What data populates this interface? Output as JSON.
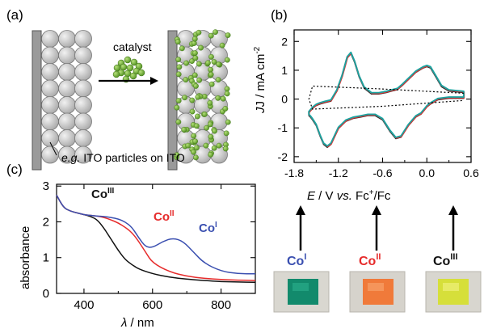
{
  "panel_a": {
    "label": "(a)",
    "catalyst_label": "catalyst",
    "caption_prefix": "e.g.",
    "caption_rest": " ITO particles on ITO"
  },
  "panel_b": {
    "label": "(b)",
    "ylabel_main": "J / mA cm",
    "ylabel_sup": "-2",
    "xlabel_E": "E",
    "xlabel_mid": " / V ",
    "xlabel_vs": "vs.",
    "xlabel_fc": " Fc",
    "xlabel_plus": "+",
    "xlabel_end": "/Fc",
    "xticks": [
      "-1.8",
      "-1.2",
      "-0.6",
      "0.0",
      "0.6"
    ],
    "yticks": [
      "2",
      "1",
      "0",
      "-1",
      "-2"
    ],
    "photo_labels": [
      {
        "base": "Co",
        "sup": "I"
      },
      {
        "base": "Co",
        "sup": "II"
      },
      {
        "base": "Co",
        "sup": "III"
      }
    ]
  },
  "panel_c": {
    "label": "(c)",
    "ylabel": "absorbance",
    "xlabel_lambda": "λ",
    "xlabel_unit": " / nm",
    "xticks": [
      "400",
      "600",
      "800"
    ],
    "yticks": [
      "3",
      "2",
      "1",
      "0"
    ],
    "annotations": [
      {
        "base": "Co",
        "sup": "III"
      },
      {
        "base": "Co",
        "sup": "II"
      },
      {
        "base": "Co",
        "sup": "I"
      }
    ]
  },
  "colors": {
    "co1": "#3a4fb0",
    "co2": "#e62b2b",
    "co3": "#111111",
    "cv_teal": "#1aa3a0",
    "particle_green": "#7dbb3a",
    "particle_gray": "#c8c8c8",
    "photo_co1": "#128a6c",
    "photo_co2": "#f07a3a",
    "photo_co3": "#d6df3a"
  },
  "chart_data": [
    {
      "type": "line",
      "panel": "(b)",
      "xlabel": "E / V vs. Fc+/Fc",
      "ylabel": "J / mA cm-2",
      "xlim": [
        -1.8,
        0.6
      ],
      "ylim": [
        -2.2,
        2.4
      ],
      "xticks": [
        -1.8,
        -1.2,
        -0.6,
        0.0,
        0.6
      ],
      "yticks": [
        -2,
        -1,
        0,
        1,
        2
      ],
      "series": [
        {
          "style": "solid",
          "x": [
            0.5,
            0.3,
            0.15,
            0.05,
            0.0,
            -0.03,
            -0.08,
            -0.15,
            -0.25,
            -0.35,
            -0.42,
            -0.5,
            -0.6,
            -0.7,
            -0.8,
            -0.9,
            -1.0,
            -1.1,
            -1.2,
            -1.3,
            -1.35,
            -1.4,
            -1.45,
            -1.5,
            -1.55,
            -1.58,
            -1.6,
            -1.6,
            -1.55,
            -1.5,
            -1.45,
            -1.38,
            -1.3,
            -1.22,
            -1.15,
            -1.08,
            -1.03,
            -0.98,
            -0.92,
            -0.85,
            -0.75,
            -0.65,
            -0.55,
            -0.48,
            -0.4,
            -0.33,
            -0.25,
            -0.15,
            -0.05,
            0.0,
            0.05,
            0.12,
            0.2,
            0.3,
            0.5
          ],
          "y": [
            0.05,
            0.05,
            0.0,
            -0.15,
            -0.25,
            -0.35,
            -0.5,
            -0.6,
            -0.9,
            -1.3,
            -1.35,
            -1.1,
            -0.7,
            -0.55,
            -0.55,
            -0.6,
            -0.65,
            -0.75,
            -1.0,
            -1.55,
            -1.65,
            -1.55,
            -1.25,
            -0.9,
            -0.7,
            -0.6,
            -0.55,
            -0.45,
            -0.3,
            -0.2,
            -0.15,
            -0.1,
            -0.05,
            0.3,
            0.8,
            1.45,
            1.6,
            1.3,
            0.8,
            0.4,
            0.2,
            0.2,
            0.25,
            0.3,
            0.35,
            0.5,
            0.7,
            0.95,
            1.1,
            1.15,
            1.1,
            0.8,
            0.45,
            0.3,
            0.25
          ]
        },
        {
          "style": "dotted",
          "x": [
            0.5,
            -0.6,
            -1.55,
            -1.6,
            -1.55,
            -0.6,
            0.5
          ],
          "y": [
            0.2,
            0.35,
            0.45,
            0.0,
            -0.35,
            -0.25,
            -0.05
          ]
        }
      ]
    },
    {
      "type": "line",
      "panel": "(c)",
      "xlabel": "λ / nm",
      "ylabel": "absorbance",
      "xlim": [
        320,
        900
      ],
      "ylim": [
        0,
        3.05
      ],
      "xticks": [
        400,
        600,
        800
      ],
      "yticks": [
        0,
        1,
        2,
        3
      ],
      "series": [
        {
          "name": "CoIII",
          "x": [
            320,
            340,
            360,
            380,
            400,
            420,
            440,
            460,
            480,
            500,
            520,
            540,
            560,
            600,
            650,
            700,
            750,
            800,
            850,
            900
          ],
          "y": [
            2.75,
            2.4,
            2.3,
            2.25,
            2.2,
            2.15,
            2.05,
            1.8,
            1.5,
            1.2,
            0.95,
            0.8,
            0.68,
            0.55,
            0.45,
            0.4,
            0.36,
            0.33,
            0.32,
            0.31
          ]
        },
        {
          "name": "CoII",
          "x": [
            320,
            340,
            360,
            380,
            400,
            420,
            440,
            460,
            480,
            500,
            520,
            540,
            560,
            580,
            600,
            650,
            700,
            750,
            800,
            850,
            900
          ],
          "y": [
            2.75,
            2.4,
            2.3,
            2.25,
            2.2,
            2.18,
            2.16,
            2.12,
            2.05,
            1.97,
            1.85,
            1.7,
            1.45,
            1.15,
            0.85,
            0.6,
            0.48,
            0.42,
            0.39,
            0.37,
            0.36
          ]
        },
        {
          "name": "CoI",
          "x": [
            320,
            340,
            360,
            380,
            400,
            420,
            440,
            460,
            480,
            500,
            520,
            540,
            560,
            580,
            600,
            630,
            660,
            690,
            720,
            750,
            800,
            850,
            900
          ],
          "y": [
            2.75,
            2.4,
            2.3,
            2.25,
            2.2,
            2.18,
            2.16,
            2.15,
            2.12,
            2.08,
            2.0,
            1.85,
            1.55,
            1.3,
            1.28,
            1.45,
            1.55,
            1.45,
            1.15,
            0.85,
            0.62,
            0.55,
            0.55
          ]
        }
      ]
    }
  ]
}
